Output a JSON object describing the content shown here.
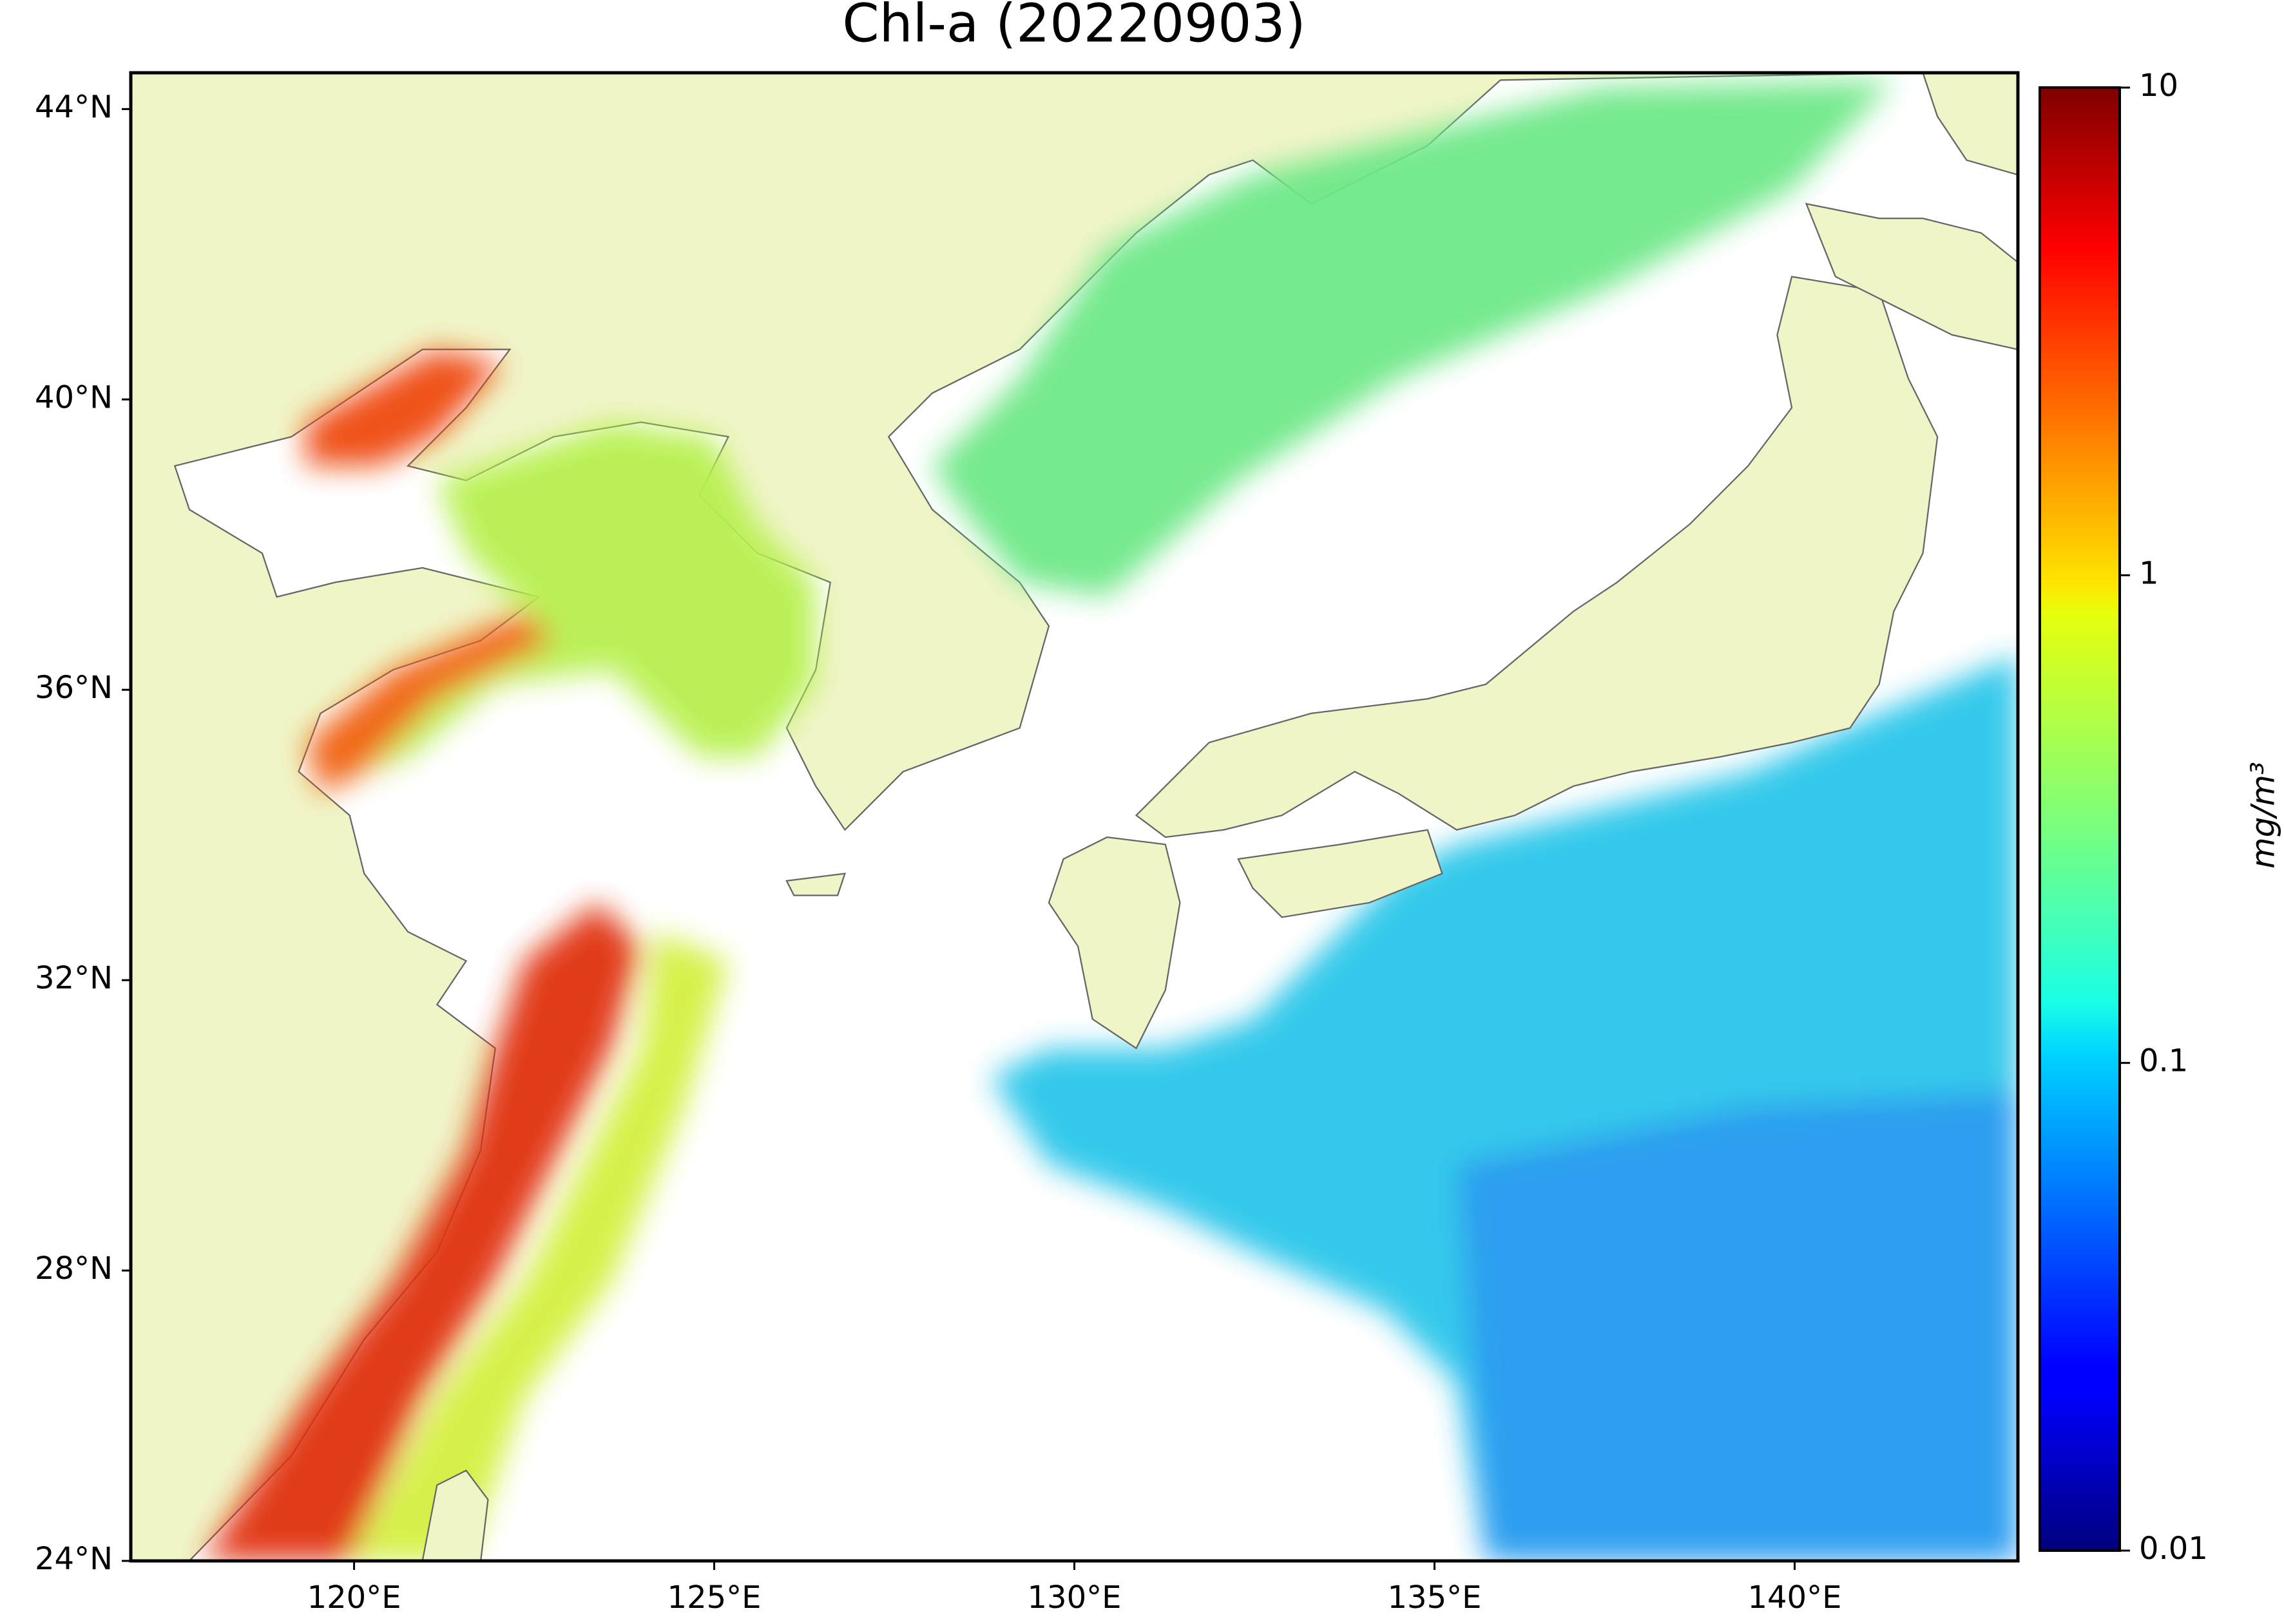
{
  "chart_data": {
    "type": "map",
    "title": "Chl-a (20220903)",
    "xlim": [
      116.9,
      143.1
    ],
    "ylim": [
      24,
      44.5
    ],
    "xticks": [
      {
        "value": 120,
        "label": "120°E"
      },
      {
        "value": 125,
        "label": "125°E"
      },
      {
        "value": 130,
        "label": "130°E"
      },
      {
        "value": 135,
        "label": "135°E"
      },
      {
        "value": 140,
        "label": "140°E"
      }
    ],
    "yticks": [
      {
        "value": 24,
        "label": "24°N"
      },
      {
        "value": 28,
        "label": "28°N"
      },
      {
        "value": 32,
        "label": "32°N"
      },
      {
        "value": 36,
        "label": "36°N"
      },
      {
        "value": 40,
        "label": "40°N"
      },
      {
        "value": 44,
        "label": "44°N"
      }
    ],
    "colorbar": {
      "label": "mg/m³",
      "colormap": "jet",
      "log_scale": true,
      "lim": [
        0.01,
        10
      ],
      "ticks": [
        0.01,
        0.1,
        1,
        10
      ]
    }
  }
}
